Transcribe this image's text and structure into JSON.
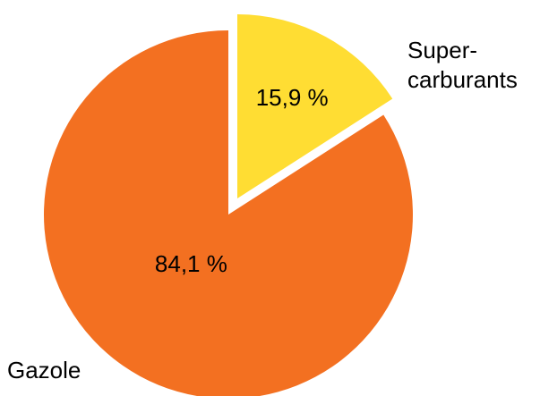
{
  "chart_data": {
    "type": "pie",
    "categories": [
      "Gazole",
      "Super-carburants"
    ],
    "values": [
      84.1,
      15.9
    ],
    "value_labels": [
      "84,1 %",
      "15,9 %"
    ],
    "colors": [
      "#F37021",
      "#FFDD33"
    ],
    "exploded": "Super-carburants",
    "legend": "none"
  },
  "labels": {
    "gazole": "Gazole",
    "super_line1": "Super-",
    "super_line2": "carburants"
  }
}
